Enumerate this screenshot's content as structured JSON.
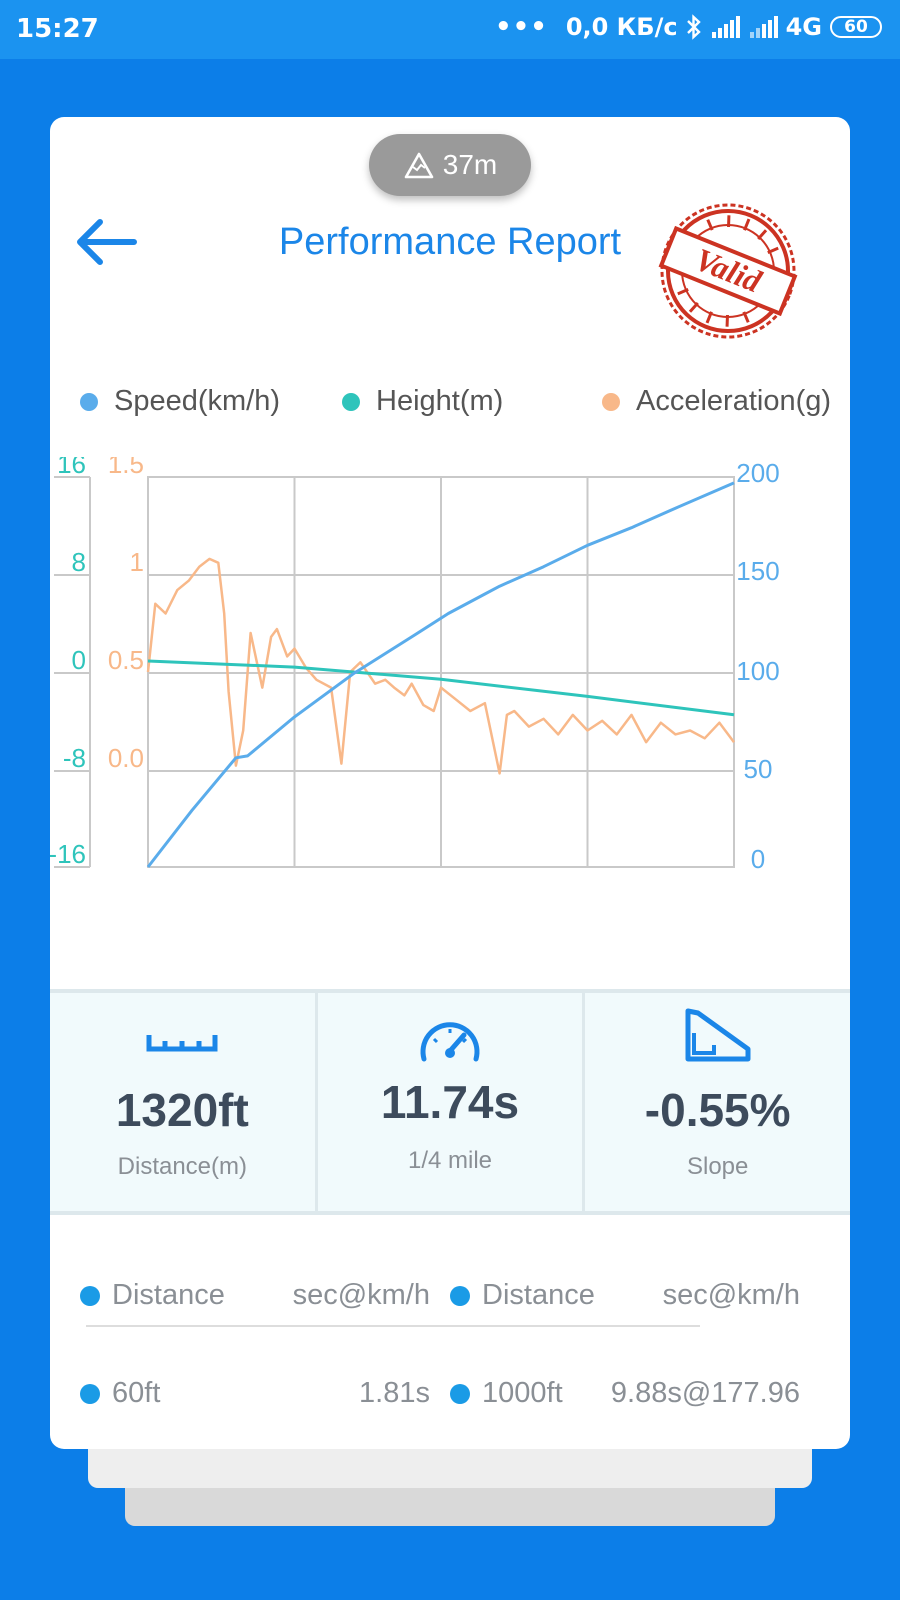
{
  "status_bar": {
    "time": "15:27",
    "dots": "•••",
    "speed": "0,0 КБ/с",
    "network": "4G",
    "battery": "60"
  },
  "header": {
    "altitude": "37m",
    "title": "Performance Report",
    "stamp_text": "Valid"
  },
  "legend": {
    "speed": "Speed(km/h)",
    "height": "Height(m)",
    "acceleration": "Acceleration(g)"
  },
  "colors": {
    "speed": "#5aaceb",
    "height": "#2ec4bb",
    "acceleration": "#f8b889",
    "accent": "#1b86e8",
    "stamp": "#cc3322"
  },
  "chart_data": {
    "type": "line",
    "grid": true,
    "x_range": [
      0,
      4
    ],
    "axes": {
      "height": {
        "ticks": [
          "16",
          "8",
          "0",
          "-8",
          "-16"
        ],
        "range": [
          -16,
          16
        ]
      },
      "acceleration": {
        "ticks": [
          "1.5",
          "1",
          "0.5",
          "0.0"
        ],
        "range": [
          -0.5,
          1.5
        ]
      },
      "speed": {
        "ticks": [
          "200",
          "150",
          "100",
          "50",
          "0"
        ],
        "range": [
          0,
          200
        ]
      }
    },
    "series": [
      {
        "name": "Speed(km/h)",
        "x": [
          0,
          0.3,
          0.6,
          0.68,
          1.0,
          1.4,
          1.8,
          2.05,
          2.3,
          2.4,
          2.7,
          3.0,
          3.3,
          3.6,
          4.0
        ],
        "values": [
          0,
          29,
          56,
          57,
          77,
          99,
          118,
          130,
          140,
          144,
          154,
          165,
          174,
          184,
          197
        ]
      },
      {
        "name": "Height(m)",
        "x": [
          0,
          1,
          2,
          3,
          4
        ],
        "values": [
          0.9,
          0.4,
          -0.6,
          -2.0,
          -3.5
        ]
      },
      {
        "name": "Acceleration(g)",
        "x": [
          0,
          0.05,
          0.12,
          0.2,
          0.28,
          0.35,
          0.42,
          0.48,
          0.52,
          0.55,
          0.6,
          0.65,
          0.7,
          0.78,
          0.84,
          0.88,
          0.95,
          1.0,
          1.08,
          1.15,
          1.25,
          1.32,
          1.38,
          1.45,
          1.55,
          1.62,
          1.68,
          1.75,
          1.8,
          1.88,
          1.95,
          2.0,
          2.1,
          2.2,
          2.3,
          2.4,
          2.45,
          2.5,
          2.6,
          2.7,
          2.8,
          2.9,
          3.0,
          3.1,
          3.2,
          3.3,
          3.4,
          3.5,
          3.6,
          3.7,
          3.8,
          3.9,
          4.0
        ],
        "values": [
          0.5,
          0.85,
          0.8,
          0.92,
          0.97,
          1.04,
          1.08,
          1.06,
          0.8,
          0.4,
          0.02,
          0.2,
          0.7,
          0.42,
          0.68,
          0.72,
          0.58,
          0.62,
          0.52,
          0.46,
          0.42,
          0.03,
          0.5,
          0.55,
          0.44,
          0.46,
          0.42,
          0.38,
          0.44,
          0.33,
          0.3,
          0.42,
          0.36,
          0.3,
          0.34,
          -0.02,
          0.28,
          0.3,
          0.22,
          0.26,
          0.18,
          0.28,
          0.2,
          0.25,
          0.18,
          0.28,
          0.14,
          0.24,
          0.18,
          0.2,
          0.16,
          0.24,
          0.14
        ]
      }
    ]
  },
  "stats": [
    {
      "icon": "ruler-icon",
      "value": "1320ft",
      "label": "Distance(m)"
    },
    {
      "icon": "speedometer-icon",
      "value": "11.74s",
      "label": "1/4 mile"
    },
    {
      "icon": "slope-icon",
      "value": "-0.55%",
      "label": "Slope"
    }
  ],
  "splits": {
    "header": [
      "Distance",
      "sec@km/h",
      "Distance",
      "sec@km/h"
    ],
    "rows": [
      [
        "60ft",
        "1.81s",
        "1000ft",
        "9.88s@177.96"
      ]
    ]
  }
}
